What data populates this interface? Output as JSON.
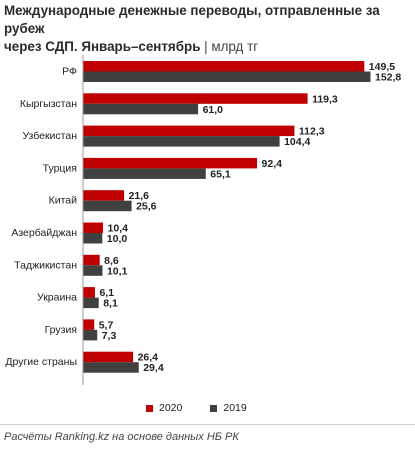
{
  "title_line1": "Международные денежные переводы, отправленные за рубеж",
  "title_line2": "через СДП. Январь–сентябрь",
  "title_sep": "|",
  "unit": "млрд тг",
  "source": "Расчёты Ranking.kz на основе данных НБ РК",
  "colors": {
    "2020": "#c00000",
    "2019": "#404040"
  },
  "chart_data": {
    "type": "bar",
    "orientation": "horizontal",
    "categories": [
      "РФ",
      "Кыргызстан",
      "Узбекистан",
      "Турция",
      "Китай",
      "Азербайджан",
      "Таджикистан",
      "Украина",
      "Грузия",
      "Другие страны"
    ],
    "series": [
      {
        "name": "2020",
        "values": [
          149.5,
          119.3,
          112.3,
          92.4,
          21.6,
          10.4,
          8.6,
          6.1,
          5.7,
          26.4
        ]
      },
      {
        "name": "2019",
        "values": [
          152.8,
          61.0,
          104.4,
          65.1,
          25.6,
          10.0,
          10.1,
          8.1,
          7.3,
          29.4
        ]
      }
    ],
    "value_labels": [
      [
        "149,5",
        "119,3",
        "112,3",
        "92,4",
        "21,6",
        "10,4",
        "8,6",
        "6,1",
        "5,7",
        "26,4"
      ],
      [
        "152,8",
        "61,0",
        "104,4",
        "65,1",
        "25,6",
        "10,0",
        "10,1",
        "8,1",
        "7,3",
        "29,4"
      ]
    ],
    "xlim": [
      0,
      152.8
    ],
    "legend_position": "bottom",
    "grid": false
  }
}
